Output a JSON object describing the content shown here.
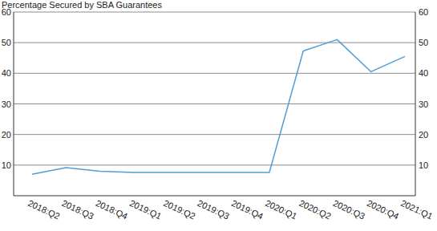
{
  "chart_data": {
    "type": "line",
    "title": "Percentage Secured by SBA Guarantees",
    "categories": [
      "2018:Q2",
      "2018:Q3",
      "2018:Q4",
      "2019:Q1",
      "2019:Q2",
      "2019:Q3",
      "2019:Q4",
      "2020:Q1",
      "2020:Q2",
      "2020:Q3",
      "2020:Q4",
      "2021:Q1"
    ],
    "values": [
      7,
      9.2,
      8,
      7.6,
      7.6,
      7.6,
      7.6,
      7.6,
      47.3,
      51,
      40.5,
      45.5
    ],
    "color": "#4f9fd6",
    "ylim": [
      0,
      60
    ],
    "yticks": [
      10,
      20,
      30,
      40,
      50,
      60
    ],
    "grid": true
  }
}
